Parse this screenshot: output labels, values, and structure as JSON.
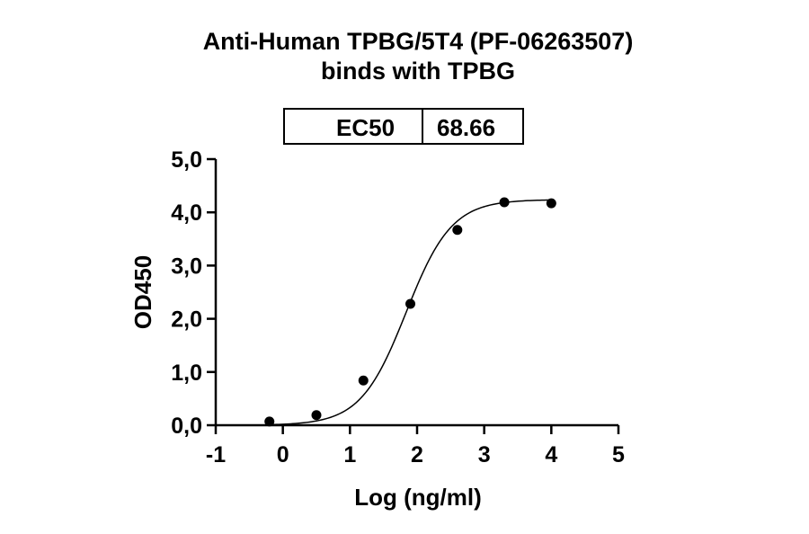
{
  "chart_data": {
    "type": "scatter",
    "title_line1": "Anti-Human TPBG/5T4 (PF-06263507)",
    "title_line2": "binds with TPBG",
    "xlabel": "Log (ng/ml)",
    "ylabel": "OD450",
    "xlim": [
      -1,
      5
    ],
    "ylim": [
      0,
      5
    ],
    "x_ticks": [
      "-1",
      "0",
      "1",
      "2",
      "3",
      "4",
      "5"
    ],
    "y_ticks": [
      "0,0",
      "1,0",
      "2,0",
      "3,0",
      "4,0",
      "5,0"
    ],
    "grid": false,
    "fit": "4PL sigmoid",
    "ec50_table": {
      "label": "EC50",
      "value": "68.66"
    },
    "series": [
      {
        "x": [
          -0.2,
          0.5,
          1.2,
          1.9,
          2.6,
          3.3,
          4.0
        ],
        "y": [
          0.07,
          0.19,
          0.84,
          2.28,
          3.67,
          4.19,
          4.17
        ]
      }
    ],
    "colors": {
      "marker": "#000000",
      "line": "#000000"
    }
  }
}
